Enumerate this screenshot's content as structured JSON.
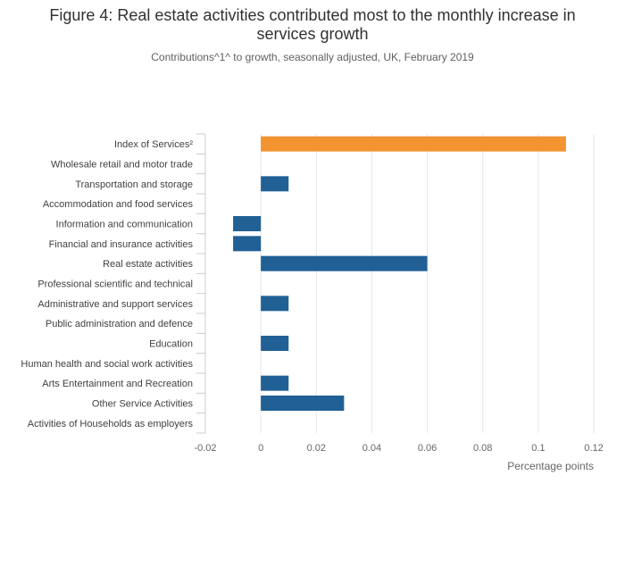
{
  "chart_data": {
    "type": "bar",
    "orientation": "horizontal",
    "title": "Figure 4: Real estate activities contributed most to the monthly increase in services growth",
    "subtitle": "Contributions^1^ to growth, seasonally adjusted, UK, February 2019",
    "xlabel": "Percentage points",
    "ylabel": "",
    "xlim": [
      -0.02,
      0.12
    ],
    "xticks": [
      -0.02,
      0,
      0.02,
      0.04,
      0.06,
      0.08,
      0.1,
      0.12
    ],
    "xtick_labels": [
      "-0.02",
      "0",
      "0.02",
      "0.04",
      "0.06",
      "0.08",
      "0.1",
      "0.12"
    ],
    "grid": true,
    "categories": [
      "Index of Services²",
      "Wholesale retail and motor trade",
      "Transportation and storage",
      "Accommodation and food services",
      "Information and communication",
      "Financial and insurance activities",
      "Real estate activities",
      "Professional scientific and technical",
      "Administrative and support services",
      "Public administration and defence",
      "Education",
      "Human health and social work activities",
      "Arts Entertainment and Recreation",
      "Other Service Activities",
      "Activities of Households as employers"
    ],
    "values": [
      0.11,
      0,
      0.01,
      0,
      -0.01,
      -0.01,
      0.06,
      0,
      0.01,
      0,
      0.01,
      0,
      0.01,
      0.03,
      0
    ],
    "highlight_index": 0,
    "colors": {
      "highlight": "#f39431",
      "default": "#206095",
      "grid": "#e6e6e6",
      "axis": "#cccccc"
    }
  }
}
